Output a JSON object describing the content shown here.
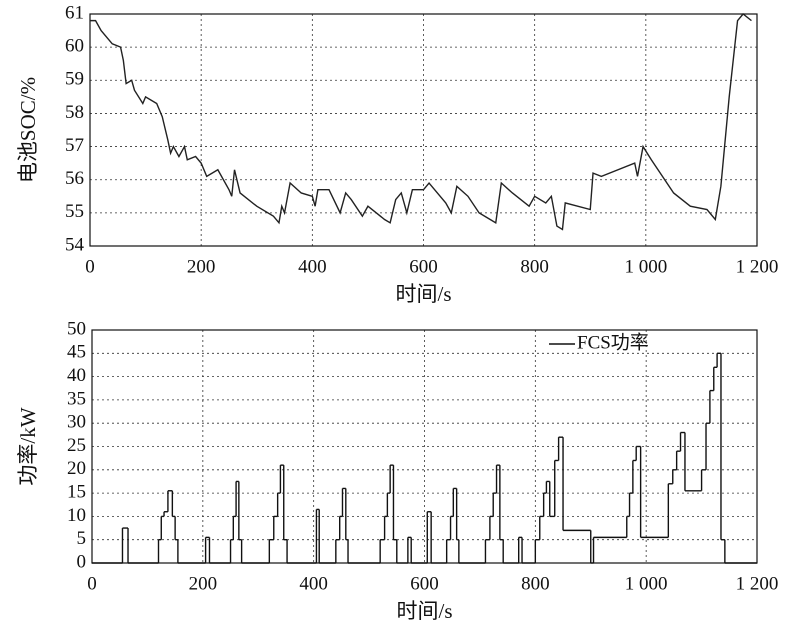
{
  "chart_data": [
    {
      "type": "line",
      "xlabel": "时间/s",
      "ylabel": "电池SOC/%",
      "color": "#222",
      "grid": true,
      "xlim": [
        0,
        1200
      ],
      "xticks": [
        0,
        200,
        400,
        600,
        800,
        {
          "value": 1000,
          "label": "1 000"
        },
        {
          "value": 1200,
          "label": "1 200"
        }
      ],
      "ylim": [
        54,
        61
      ],
      "yticks": [
        54,
        55,
        56,
        57,
        58,
        59,
        60,
        61
      ],
      "series": [
        {
          "x": [
            0,
            10,
            20,
            40,
            55,
            60,
            65,
            75,
            80,
            95,
            100,
            120,
            130,
            140,
            145,
            150,
            160,
            170,
            175,
            190,
            200,
            210,
            230,
            250,
            255,
            260,
            270,
            300,
            330,
            340,
            345,
            350,
            360,
            380,
            400,
            405,
            410,
            430,
            450,
            460,
            470,
            490,
            500,
            530,
            540,
            550,
            560,
            570,
            580,
            600,
            610,
            640,
            650,
            660,
            680,
            700,
            720,
            730,
            740,
            760,
            790,
            800,
            820,
            830,
            840,
            850,
            855,
            900,
            905,
            920,
            980,
            985,
            995,
            1010,
            1050,
            1080,
            1110,
            1125,
            1135,
            1150,
            1165,
            1175,
            1190
          ],
          "values": [
            60.8,
            60.8,
            60.5,
            60.1,
            60.0,
            59.6,
            58.9,
            59.0,
            58.7,
            58.3,
            58.5,
            58.3,
            57.9,
            57.2,
            56.8,
            57.0,
            56.7,
            57.0,
            56.6,
            56.7,
            56.5,
            56.1,
            56.3,
            55.7,
            55.5,
            56.3,
            55.6,
            55.2,
            54.9,
            54.7,
            55.2,
            55.0,
            55.9,
            55.6,
            55.5,
            55.2,
            55.7,
            55.7,
            55.0,
            55.6,
            55.4,
            54.9,
            55.2,
            54.8,
            54.7,
            55.4,
            55.6,
            55.0,
            55.7,
            55.7,
            55.9,
            55.3,
            55.0,
            55.8,
            55.5,
            55.0,
            54.8,
            54.7,
            55.9,
            55.6,
            55.2,
            55.5,
            55.3,
            55.5,
            54.6,
            54.5,
            55.3,
            55.1,
            56.2,
            56.1,
            56.5,
            56.1,
            57.0,
            56.6,
            55.6,
            55.2,
            55.1,
            54.8,
            55.8,
            58.5,
            60.8,
            61.0,
            60.8
          ]
        }
      ]
    },
    {
      "type": "step",
      "xlabel": "时间/s",
      "ylabel": "功率/kW",
      "grid": true,
      "legend": "upper right",
      "xlim": [
        0,
        1200
      ],
      "xticks": [
        0,
        200,
        400,
        600,
        800,
        {
          "value": 1000,
          "label": "1 000"
        },
        {
          "value": 1200,
          "label": "1 200"
        }
      ],
      "ylim": [
        0,
        50
      ],
      "yticks": [
        0,
        5,
        10,
        15,
        20,
        25,
        30,
        35,
        40,
        45,
        50
      ],
      "series": [
        {
          "name": "FCS功率",
          "color": "#111",
          "x": [
            0,
            55,
            65,
            120,
            125,
            130,
            137,
            145,
            150,
            155,
            205,
            212,
            250,
            255,
            260,
            265,
            270,
            320,
            328,
            335,
            340,
            346,
            352,
            405,
            410,
            440,
            447,
            452,
            458,
            462,
            520,
            528,
            533,
            538,
            544,
            550,
            570,
            576,
            605,
            612,
            640,
            647,
            652,
            658,
            662,
            710,
            718,
            724,
            730,
            736,
            742,
            770,
            776,
            800,
            808,
            815,
            820,
            826,
            835,
            842,
            850,
            900,
            905,
            965,
            970,
            976,
            982,
            990,
            1040,
            1048,
            1055,
            1062,
            1070,
            1100,
            1108,
            1115,
            1122,
            1128,
            1135,
            1142,
            1200
          ],
          "values": [
            0,
            7.5,
            0,
            5,
            10,
            11,
            15.5,
            10,
            5,
            0,
            5.5,
            0,
            5,
            10,
            17.5,
            5,
            0,
            5,
            10,
            15,
            21,
            5,
            0,
            11.5,
            0,
            5,
            10,
            16,
            5,
            0,
            5,
            10,
            15,
            21,
            5,
            0,
            5.5,
            0,
            11,
            0,
            5,
            10,
            16,
            5,
            0,
            5,
            10,
            15,
            21,
            5,
            0,
            5.5,
            0,
            5,
            10,
            15,
            17.5,
            10,
            22,
            27,
            7,
            0,
            5.5,
            10,
            15,
            22,
            25,
            5.5,
            17,
            20,
            24,
            28,
            15.5,
            20,
            30,
            37,
            42,
            45,
            5,
            0,
            0
          ]
        }
      ]
    }
  ]
}
